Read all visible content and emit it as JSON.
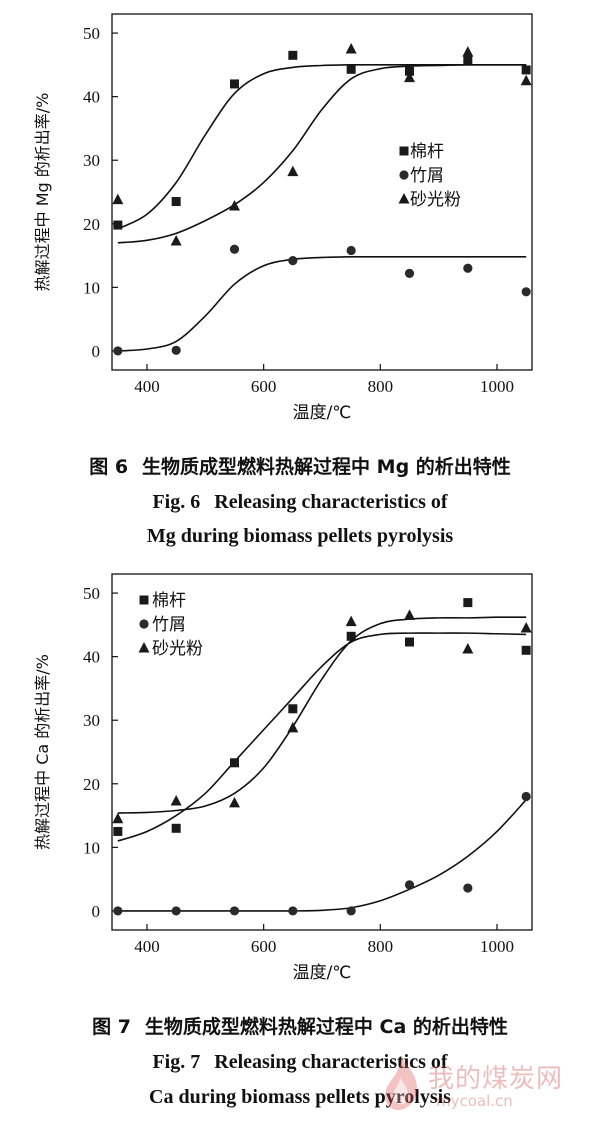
{
  "chart_data": [
    {
      "type": "scatter",
      "xlabel": "温度/℃",
      "ylabel": "热解过程中 Mg 的析出率/%",
      "xlim": [
        340,
        1060
      ],
      "ylim": [
        -3,
        53
      ],
      "xticks": [
        400,
        600,
        800,
        1000
      ],
      "yticks": [
        0,
        10,
        20,
        30,
        40,
        50
      ],
      "grid": false,
      "legend_position": "middle-right",
      "series": [
        {
          "name": "棉杆",
          "marker": "square",
          "x": [
            350,
            450,
            550,
            650,
            750,
            850,
            950,
            1050
          ],
          "y": [
            19.8,
            23.5,
            42,
            46.5,
            44.3,
            44,
            45.8,
            44.2
          ],
          "curve_x": [
            350,
            400,
            450,
            500,
            550,
            600,
            650,
            700,
            750,
            800,
            850,
            900,
            950,
            1000,
            1050
          ],
          "curve_y": [
            19.2,
            21.5,
            26.5,
            34,
            40.5,
            43.6,
            44.6,
            44.9,
            45,
            45,
            45,
            45,
            45,
            45,
            45
          ]
        },
        {
          "name": "竹屑",
          "marker": "circle",
          "x": [
            350,
            450,
            550,
            650,
            750,
            850,
            950,
            1050
          ],
          "y": [
            0,
            0.1,
            16,
            14.2,
            15.8,
            12.2,
            13,
            9.3
          ],
          "curve_x": [
            350,
            400,
            450,
            500,
            550,
            600,
            650,
            700,
            750,
            800,
            850,
            900,
            950,
            1000,
            1050
          ],
          "curve_y": [
            0,
            0.3,
            1.5,
            5.5,
            10.5,
            13.4,
            14.4,
            14.7,
            14.8,
            14.8,
            14.8,
            14.8,
            14.8,
            14.8,
            14.8
          ]
        },
        {
          "name": "砂光粉",
          "marker": "triangle",
          "x": [
            350,
            450,
            550,
            650,
            750,
            850,
            950,
            1050
          ],
          "y": [
            23.8,
            17.3,
            22.8,
            28.2,
            47.5,
            43,
            47,
            42.5
          ],
          "curve_x": [
            350,
            400,
            450,
            500,
            550,
            600,
            650,
            700,
            750,
            800,
            850,
            900,
            950,
            1000,
            1050
          ],
          "curve_y": [
            17,
            17.4,
            18.5,
            20.5,
            23,
            26.5,
            31.5,
            38,
            42.8,
            44.4,
            44.8,
            44.9,
            45,
            45,
            45
          ]
        }
      ],
      "figure_label": "图 6",
      "caption_cn": "生物质成型燃料热解过程中 Mg 的析出特性",
      "caption_en_label": "Fig. 6",
      "caption_en_line1": "Releasing characteristics of",
      "caption_en_line2": "Mg during biomass pellets pyrolysis"
    },
    {
      "type": "scatter",
      "xlabel": "温度/℃",
      "ylabel": "热解过程中 Ca 的析出率/%",
      "xlim": [
        340,
        1060
      ],
      "ylim": [
        -3,
        53
      ],
      "xticks": [
        400,
        600,
        800,
        1000
      ],
      "yticks": [
        0,
        10,
        20,
        30,
        40,
        50
      ],
      "grid": false,
      "legend_position": "top-left",
      "series": [
        {
          "name": "棉杆",
          "marker": "square",
          "x": [
            350,
            450,
            550,
            650,
            750,
            850,
            950,
            1050
          ],
          "y": [
            12.5,
            13,
            23.3,
            31.8,
            43.2,
            42.3,
            48.5,
            41
          ],
          "curve_x": [
            350,
            400,
            450,
            500,
            550,
            600,
            650,
            700,
            750,
            800,
            850,
            900,
            950,
            1000,
            1050
          ],
          "curve_y": [
            11,
            12.5,
            15,
            18.5,
            23.5,
            28.5,
            33.5,
            38.5,
            42.3,
            43.5,
            43.7,
            43.7,
            43.7,
            43.6,
            43.5
          ]
        },
        {
          "name": "竹屑",
          "marker": "circle",
          "x": [
            350,
            450,
            550,
            650,
            750,
            850,
            950,
            1050
          ],
          "y": [
            0,
            0,
            0,
            0,
            0,
            4.1,
            3.6,
            18
          ],
          "curve_x": [
            350,
            400,
            450,
            500,
            550,
            600,
            650,
            700,
            750,
            800,
            850,
            900,
            950,
            1000,
            1050
          ],
          "curve_y": [
            0,
            0,
            0,
            0,
            0,
            0,
            0,
            0.1,
            0.5,
            1.6,
            3.4,
            5.6,
            8.6,
            12.5,
            17.5
          ]
        },
        {
          "name": "砂光粉",
          "marker": "triangle",
          "x": [
            350,
            450,
            550,
            650,
            750,
            850,
            950,
            1050
          ],
          "y": [
            14.5,
            17.3,
            17,
            28.8,
            45.5,
            46.5,
            41.2,
            44.5
          ],
          "curve_x": [
            350,
            400,
            450,
            500,
            550,
            600,
            650,
            700,
            750,
            800,
            850,
            900,
            950,
            1000,
            1050
          ],
          "curve_y": [
            15.4,
            15.5,
            15.8,
            16.5,
            18.5,
            22.5,
            29,
            36.5,
            42.5,
            45.2,
            45.9,
            46.1,
            46.1,
            46.2,
            46.2
          ]
        }
      ],
      "figure_label": "图 7",
      "caption_cn": "生物质成型燃料热解过程中 Ca 的析出特性",
      "caption_en_label": "Fig. 7",
      "caption_en_line1": "Releasing characteristics of",
      "caption_en_line2": "Ca during biomass pellets pyrolysis"
    }
  ],
  "watermark": {
    "line1": "我的煤炭网",
    "line2": "mycoal.cn"
  }
}
